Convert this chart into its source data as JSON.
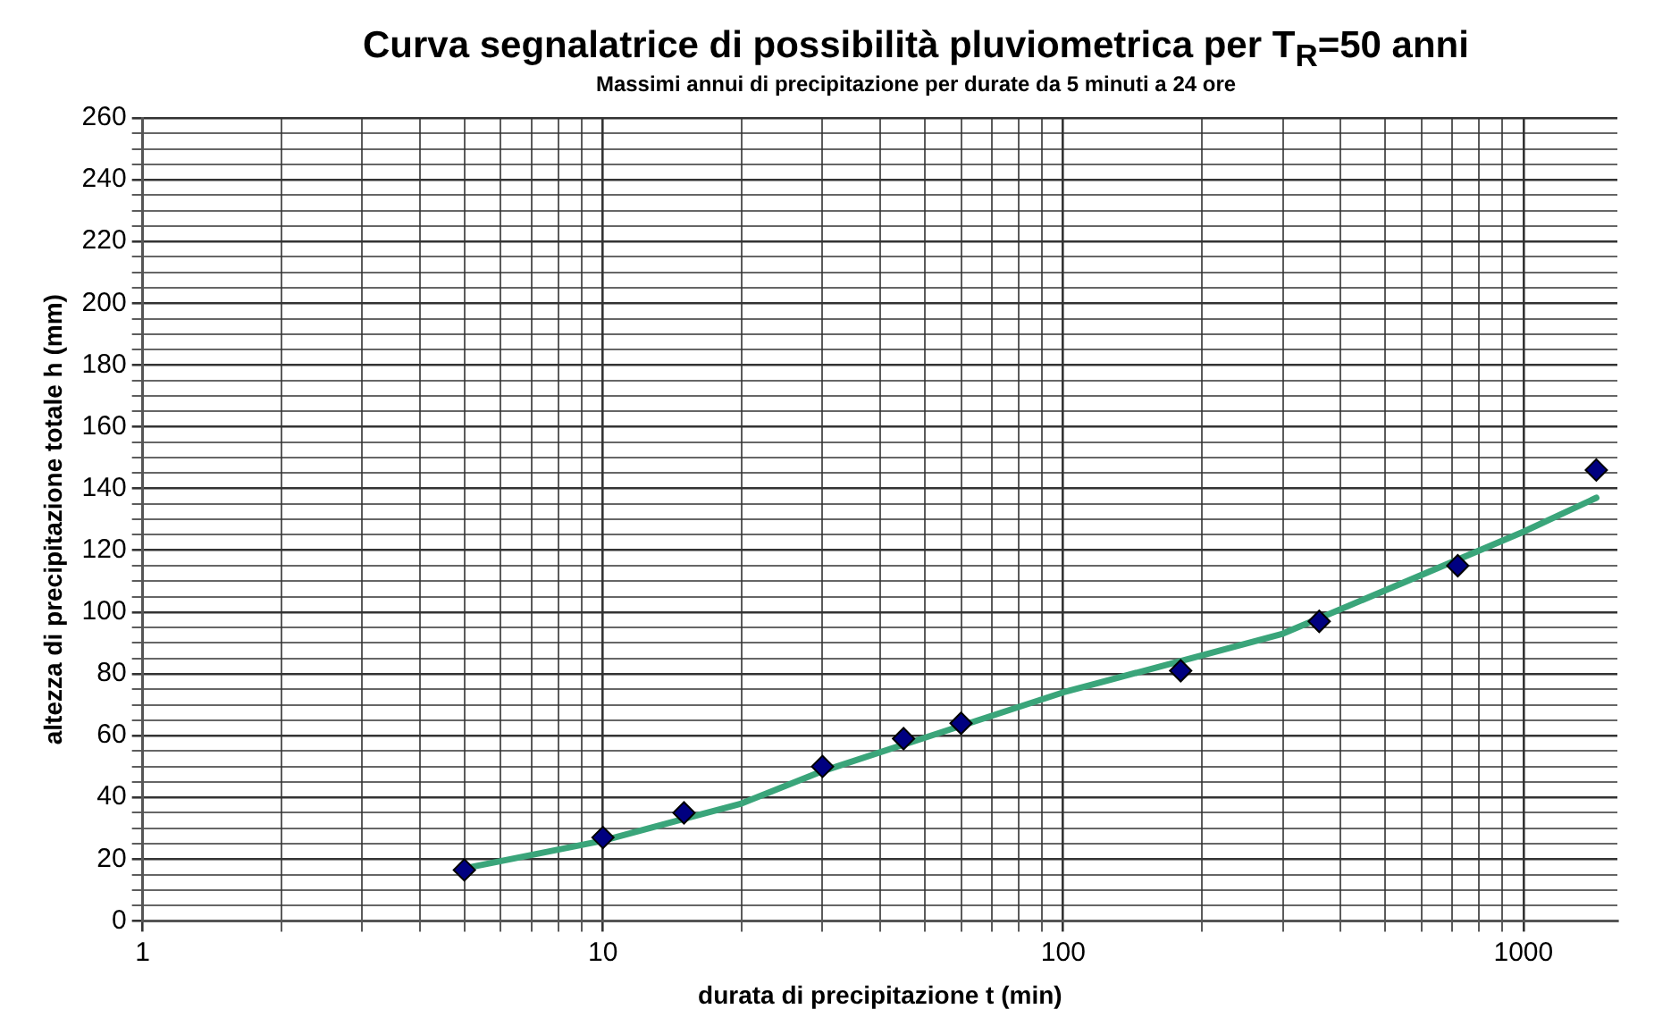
{
  "chart_data": {
    "type": "scatter",
    "title": "Curva segnalatrice di possibilità pluviometrica per T$_{R}$=50 anni",
    "subtitle": "Massimi annui di precipitazione per durate da 5 minuti a 24 ore",
    "xlabel": "durata di precipitazione t (min)",
    "ylabel": "altezza di precipitazione totale h (mm)",
    "log": "x",
    "grid": true,
    "legend": false,
    "xlim": [
      1,
      1600
    ],
    "xticks": [
      1,
      {
        "value": 2,
        "label": null
      },
      {
        "value": 3,
        "label": null
      },
      {
        "value": 4,
        "label": null
      },
      {
        "value": 5,
        "label": null
      },
      {
        "value": 6,
        "label": null
      },
      {
        "value": 7,
        "label": null
      },
      {
        "value": 8,
        "label": null
      },
      {
        "value": 9,
        "label": null
      },
      10,
      {
        "value": 20,
        "label": null
      },
      {
        "value": 30,
        "label": null
      },
      {
        "value": 40,
        "label": null
      },
      {
        "value": 50,
        "label": null
      },
      {
        "value": 60,
        "label": null
      },
      {
        "value": 70,
        "label": null
      },
      {
        "value": 80,
        "label": null
      },
      {
        "value": 90,
        "label": null
      },
      100,
      {
        "value": 200,
        "label": null
      },
      {
        "value": 300,
        "label": null
      },
      {
        "value": 400,
        "label": null
      },
      {
        "value": 500,
        "label": null
      },
      {
        "value": 600,
        "label": null
      },
      {
        "value": 700,
        "label": null
      },
      {
        "value": 800,
        "label": null
      },
      {
        "value": 900,
        "label": null
      },
      1000
    ],
    "ylim": [
      0,
      260
    ],
    "yticks": [
      0,
      {
        "value": 5,
        "label": null
      },
      {
        "value": 10,
        "label": null
      },
      {
        "value": 15,
        "label": null
      },
      20,
      {
        "value": 25,
        "label": null
      },
      {
        "value": 30,
        "label": null
      },
      {
        "value": 35,
        "label": null
      },
      40,
      {
        "value": 45,
        "label": null
      },
      {
        "value": 50,
        "label": null
      },
      {
        "value": 55,
        "label": null
      },
      60,
      {
        "value": 65,
        "label": null
      },
      {
        "value": 70,
        "label": null
      },
      {
        "value": 75,
        "label": null
      },
      80,
      {
        "value": 85,
        "label": null
      },
      {
        "value": 90,
        "label": null
      },
      {
        "value": 95,
        "label": null
      },
      100,
      {
        "value": 105,
        "label": null
      },
      {
        "value": 110,
        "label": null
      },
      {
        "value": 115,
        "label": null
      },
      120,
      {
        "value": 125,
        "label": null
      },
      {
        "value": 130,
        "label": null
      },
      {
        "value": 135,
        "label": null
      },
      140,
      {
        "value": 145,
        "label": null
      },
      {
        "value": 150,
        "label": null
      },
      {
        "value": 155,
        "label": null
      },
      160,
      {
        "value": 165,
        "label": null
      },
      {
        "value": 170,
        "label": null
      },
      {
        "value": 175,
        "label": null
      },
      180,
      {
        "value": 185,
        "label": null
      },
      {
        "value": 190,
        "label": null
      },
      {
        "value": 195,
        "label": null
      },
      200,
      {
        "value": 205,
        "label": null
      },
      {
        "value": 210,
        "label": null
      },
      {
        "value": 215,
        "label": null
      },
      220,
      {
        "value": 225,
        "label": null
      },
      {
        "value": 230,
        "label": null
      },
      {
        "value": 235,
        "label": null
      },
      240,
      {
        "value": 245,
        "label": null
      },
      {
        "value": 250,
        "label": null
      },
      {
        "value": 255,
        "label": null
      },
      260
    ],
    "series": [
      {
        "marker": "diamond",
        "color": "#000080",
        "x": [
          5,
          10,
          15,
          30,
          45,
          60,
          180,
          360,
          720,
          1440
        ],
        "values": [
          16.5,
          27,
          35,
          50,
          59,
          64,
          81,
          97,
          115,
          146
        ]
      },
      {
        "type": "line",
        "marker": "none",
        "line_style": "solid",
        "color": "#3aa57a",
        "x": [
          5,
          10,
          20,
          30,
          100,
          300,
          1000,
          1440
        ],
        "values": [
          17,
          26,
          38,
          48.5,
          74,
          93,
          126,
          137
        ]
      }
    ]
  }
}
